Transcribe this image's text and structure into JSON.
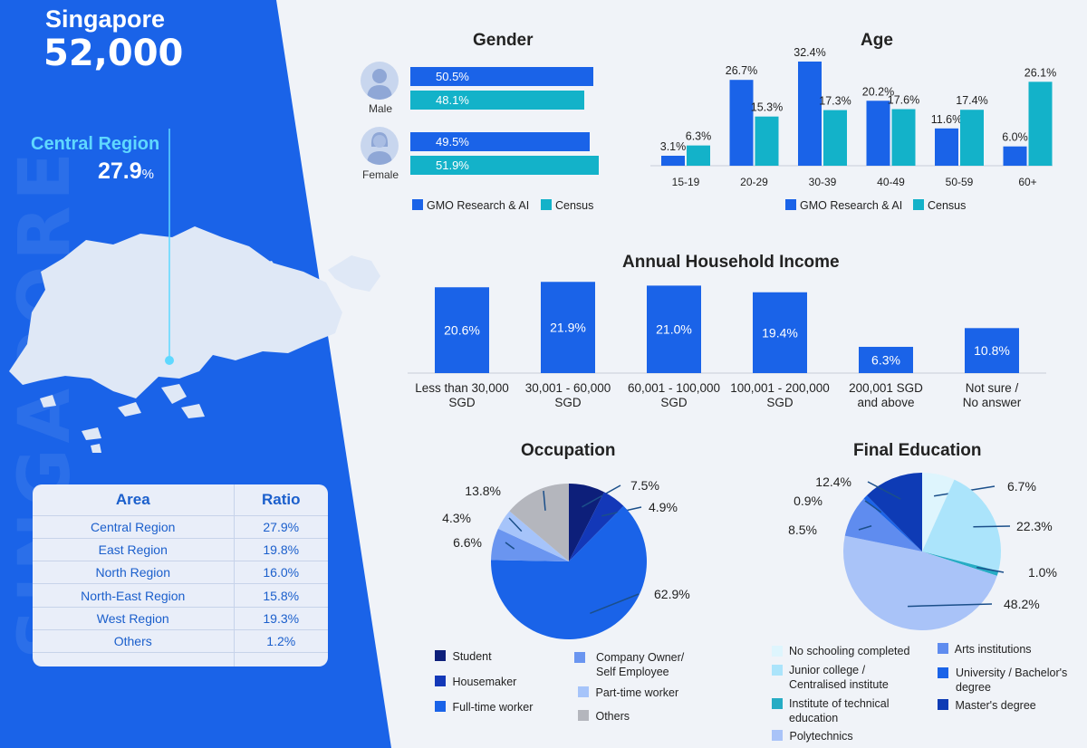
{
  "colors": {
    "blue": "#1a63e8",
    "teal": "#13b2c9",
    "panel": "#1a63e8"
  },
  "header": {
    "country": "Singapore",
    "population": "52,000",
    "watermark": "SINGAPORE"
  },
  "highlight": {
    "region": "Central Region",
    "value": "27.9",
    "unit": "%"
  },
  "area_table": {
    "headers": [
      "Area",
      "Ratio"
    ],
    "rows": [
      {
        "area": "Central Region",
        "ratio": "27.9%"
      },
      {
        "area": "East Region",
        "ratio": "19.8%"
      },
      {
        "area": "North Region",
        "ratio": "16.0%"
      },
      {
        "area": "North-East Region",
        "ratio": "15.8%"
      },
      {
        "area": "West Region",
        "ratio": "19.3%"
      },
      {
        "area": "Others",
        "ratio": "1.2%"
      }
    ]
  },
  "chart_data": [
    {
      "type": "bar",
      "title": "Gender",
      "categories": [
        "Male",
        "Female"
      ],
      "series": [
        {
          "name": "GMO Research & AI",
          "values": [
            50.5,
            49.5
          ],
          "labels": [
            "50.5%",
            "49.5%"
          ]
        },
        {
          "name": "Census",
          "values": [
            48.1,
            51.9
          ],
          "labels": [
            "48.1%",
            "51.9%"
          ]
        }
      ]
    },
    {
      "type": "bar",
      "title": "Age",
      "categories": [
        "15-19",
        "20-29",
        "30-39",
        "40-49",
        "50-59",
        "60+"
      ],
      "series": [
        {
          "name": "GMO Research & AI",
          "values": [
            3.1,
            26.7,
            32.4,
            20.2,
            11.6,
            6.0
          ],
          "labels": [
            "3.1%",
            "26.7%",
            "32.4%",
            "20.2%",
            "11.6%",
            "6.0%"
          ]
        },
        {
          "name": "Census",
          "values": [
            6.3,
            15.3,
            17.3,
            17.6,
            17.4,
            26.1
          ],
          "labels": [
            "6.3%",
            "15.3%",
            "17.3%",
            "17.6%",
            "17.4%",
            "26.1%"
          ]
        }
      ]
    },
    {
      "type": "bar",
      "title": "Annual Household Income",
      "categories": [
        [
          "Less than 30,000",
          "SGD"
        ],
        [
          "30,001 - 60,000",
          "SGD"
        ],
        [
          "60,001 - 100,000",
          "SGD"
        ],
        [
          "100,001 - 200,000",
          "SGD"
        ],
        [
          "200,001 SGD",
          "and above"
        ],
        [
          "Not sure /",
          "No answer"
        ]
      ],
      "values": [
        20.6,
        21.9,
        21.0,
        19.4,
        6.3,
        10.8
      ],
      "labels": [
        "20.6%",
        "21.9%",
        "21.0%",
        "19.4%",
        "6.3%",
        "10.8%"
      ]
    },
    {
      "type": "pie",
      "title": "Occupation",
      "slices": [
        {
          "name": "Student",
          "value": 7.5,
          "label": "7.5%",
          "color": "#0d1f7a"
        },
        {
          "name": "Housemaker",
          "value": 4.9,
          "label": "4.9%",
          "color": "#1338b8"
        },
        {
          "name": "Full-time worker",
          "value": 62.9,
          "label": "62.9%",
          "color": "#1a63e8"
        },
        {
          "name": "Company Owner/ Self Employee",
          "value": 6.6,
          "label": "6.6%",
          "color": "#6a95f0"
        },
        {
          "name": "Part-time worker",
          "value": 4.3,
          "label": "4.3%",
          "color": "#a6c4fa"
        },
        {
          "name": "Others",
          "value": 13.8,
          "label": "13.8%",
          "color": "#b4b6bd"
        }
      ]
    },
    {
      "type": "pie",
      "title": "Final Education",
      "slices": [
        {
          "name": "No schooling completed",
          "value": 6.7,
          "label": "6.7%",
          "color": "#def5fd"
        },
        {
          "name": "Junior college / Centralised institute",
          "value": 22.3,
          "label": "22.3%",
          "color": "#abe4fb"
        },
        {
          "name": "Institute of technical education",
          "value": 1.0,
          "label": "1.0%",
          "color": "#26acc4"
        },
        {
          "name": "Polytechnics",
          "value": 48.2,
          "label": "48.2%",
          "color": "#a9c3f8"
        },
        {
          "name": "Arts institutions",
          "value": 8.5,
          "label": "8.5%",
          "color": "#5f8cef"
        },
        {
          "name": "University / Bachelor's degree",
          "value": 0.9,
          "label": "0.9%",
          "color": "#1a63e8"
        },
        {
          "name": "Master's degree",
          "value": 12.4,
          "label": "12.4%",
          "color": "#0e3bb5"
        }
      ]
    }
  ]
}
